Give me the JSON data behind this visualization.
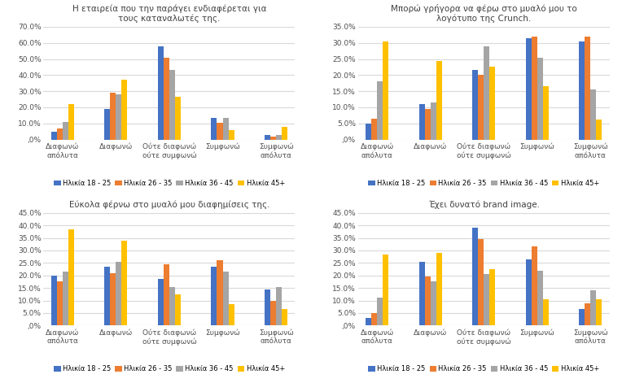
{
  "charts": [
    {
      "title": "Η εταιρεία που την παράγει ενδιαφέρεται για\nτους καταναλωτές της.",
      "ylim": [
        0,
        0.7
      ],
      "yticks": [
        0,
        0.1,
        0.2,
        0.3,
        0.4,
        0.5,
        0.6,
        0.7
      ],
      "categories": [
        "Διαφωνώ\nαπόλυτα",
        "Διαφωνώ",
        "Ούτε διαφωνώ\nούτε συμφωνώ",
        "Συμφωνώ",
        "Συμφωνώ\nαπόλυτα"
      ],
      "series": [
        [
          0.05,
          0.19,
          0.58,
          0.135,
          0.03
        ],
        [
          0.07,
          0.29,
          0.51,
          0.105,
          0.02
        ],
        [
          0.11,
          0.28,
          0.43,
          0.135,
          0.03
        ],
        [
          0.22,
          0.37,
          0.265,
          0.06,
          0.08
        ]
      ]
    },
    {
      "title": "Μπορώ γρήγορα να φέρω στο μυαλό μου το\nλογότυπο της Crunch.",
      "ylim": [
        0,
        0.35
      ],
      "yticks": [
        0,
        0.05,
        0.1,
        0.15,
        0.2,
        0.25,
        0.3,
        0.35
      ],
      "categories": [
        "Διαφωνώ\nαπόλυτα",
        "Διαφωνώ",
        "Ούτε διαφωνώ\nούτε συμφωνώ",
        "Συμφωνώ",
        "Συμφωνώ\nαπόλυτα"
      ],
      "series": [
        [
          0.05,
          0.11,
          0.215,
          0.315,
          0.305
        ],
        [
          0.065,
          0.095,
          0.2,
          0.32,
          0.32
        ],
        [
          0.18,
          0.115,
          0.29,
          0.255,
          0.155
        ],
        [
          0.305,
          0.245,
          0.225,
          0.165,
          0.062
        ]
      ]
    },
    {
      "title": "Εύκολα φέρνω στο μυαλό μου διαφημίσεις της.",
      "ylim": [
        0,
        0.45
      ],
      "yticks": [
        0,
        0.05,
        0.1,
        0.15,
        0.2,
        0.25,
        0.3,
        0.35,
        0.4,
        0.45
      ],
      "categories": [
        "Διαφωνώ\nαπόλυτα",
        "Διαφωνώ",
        "Ούτε διαφωνώ\nούτε συμφωνώ",
        "Συμφωνώ",
        "Συμφωνώ\nαπόλυτα"
      ],
      "series": [
        [
          0.2,
          0.235,
          0.185,
          0.235,
          0.145
        ],
        [
          0.175,
          0.21,
          0.245,
          0.26,
          0.1
        ],
        [
          0.215,
          0.255,
          0.155,
          0.215,
          0.155
        ],
        [
          0.385,
          0.34,
          0.125,
          0.085,
          0.065
        ]
      ]
    },
    {
      "title": "Έχει δυνατό brand image.",
      "ylim": [
        0,
        0.45
      ],
      "yticks": [
        0,
        0.05,
        0.1,
        0.15,
        0.2,
        0.25,
        0.3,
        0.35,
        0.4,
        0.45
      ],
      "categories": [
        "Διαφωνώ\nαπόλυτα",
        "Διαφωνώ",
        "Ούτε διαφωνώ\nούτε συμφωνώ",
        "Συμφωνώ",
        "Συμφωνώ\nαπόλυτα"
      ],
      "series": [
        [
          0.03,
          0.255,
          0.39,
          0.265,
          0.065
        ],
        [
          0.05,
          0.195,
          0.345,
          0.315,
          0.09
        ],
        [
          0.11,
          0.175,
          0.205,
          0.22,
          0.14
        ],
        [
          0.285,
          0.29,
          0.225,
          0.105,
          0.105
        ]
      ]
    }
  ],
  "legend_labels": [
    "Ηλικία 18 - 25",
    "Ηλικία 26 - 35",
    "Ηλικία 36 - 45",
    "Ηλικία 45+"
  ],
  "colors": [
    "#4472C4",
    "#ED7D31",
    "#A5A5A5",
    "#FFC000"
  ],
  "background_color": "#FFFFFF",
  "grid_color": "#D9D9D9"
}
